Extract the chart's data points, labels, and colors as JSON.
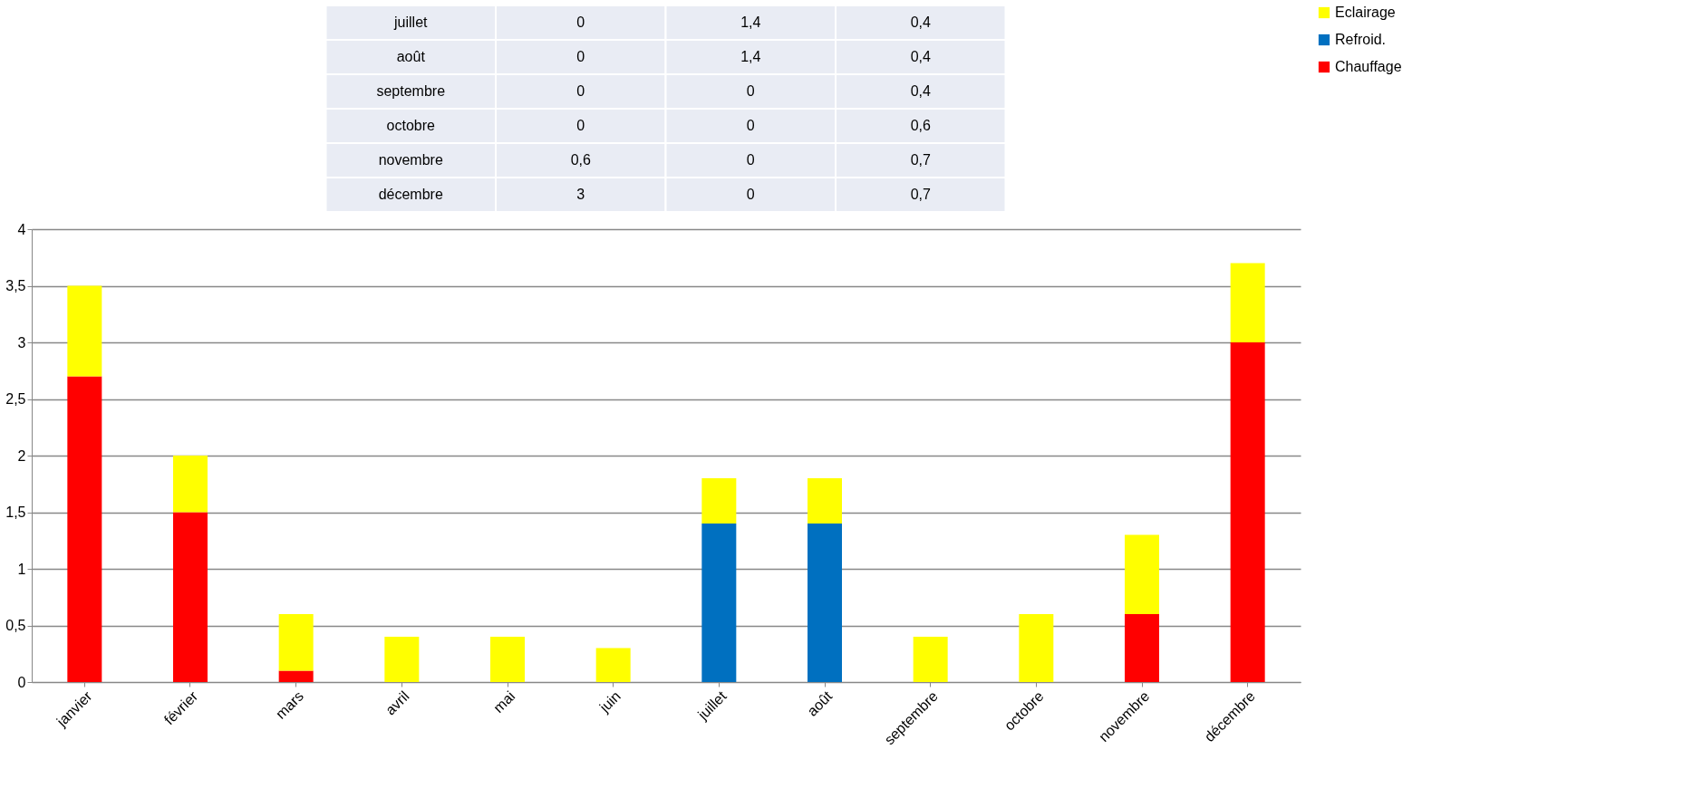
{
  "chart_data": {
    "type": "bar",
    "stacked": true,
    "categories": [
      "janvier",
      "février",
      "mars",
      "avril",
      "mai",
      "juin",
      "juillet",
      "août",
      "septembre",
      "octobre",
      "novembre",
      "décembre"
    ],
    "series": [
      {
        "name": "Chauffage",
        "color": "#ff0000",
        "values": [
          2.7,
          1.5,
          0.1,
          0,
          0,
          0,
          0,
          0,
          0,
          0,
          0.6,
          3
        ]
      },
      {
        "name": "Refroid.",
        "color": "#0070c0",
        "values": [
          0,
          0,
          0,
          0,
          0,
          0,
          1.4,
          1.4,
          0,
          0,
          0,
          0
        ]
      },
      {
        "name": "Eclairage",
        "color": "#ffff00",
        "values": [
          0.8,
          0.5,
          0.5,
          0.4,
          0.4,
          0.3,
          0.4,
          0.4,
          0.4,
          0.6,
          0.7,
          0.7
        ]
      }
    ],
    "annotations": [
      "juillet",
      "0",
      "1,4",
      "0,4",
      "août",
      "0",
      "1,4",
      "0,4",
      "septembre",
      "0",
      "0",
      "0,4",
      "octobre",
      "0",
      "0",
      "0,6",
      "novembre",
      "0,6",
      "0",
      "0,7",
      "décembre",
      "3",
      "0",
      "0,7"
    ],
    "ylim": [
      0,
      4
    ],
    "yticks": [
      0,
      {
        "value": 0.5,
        "label": "0,5"
      },
      1,
      {
        "value": 1.5,
        "label": "1,5"
      },
      2,
      {
        "value": 2.5,
        "label": "2,5"
      },
      3,
      {
        "value": 3.5,
        "label": "3,5"
      },
      4
    ],
    "grid": "y",
    "legend": "right"
  }
}
